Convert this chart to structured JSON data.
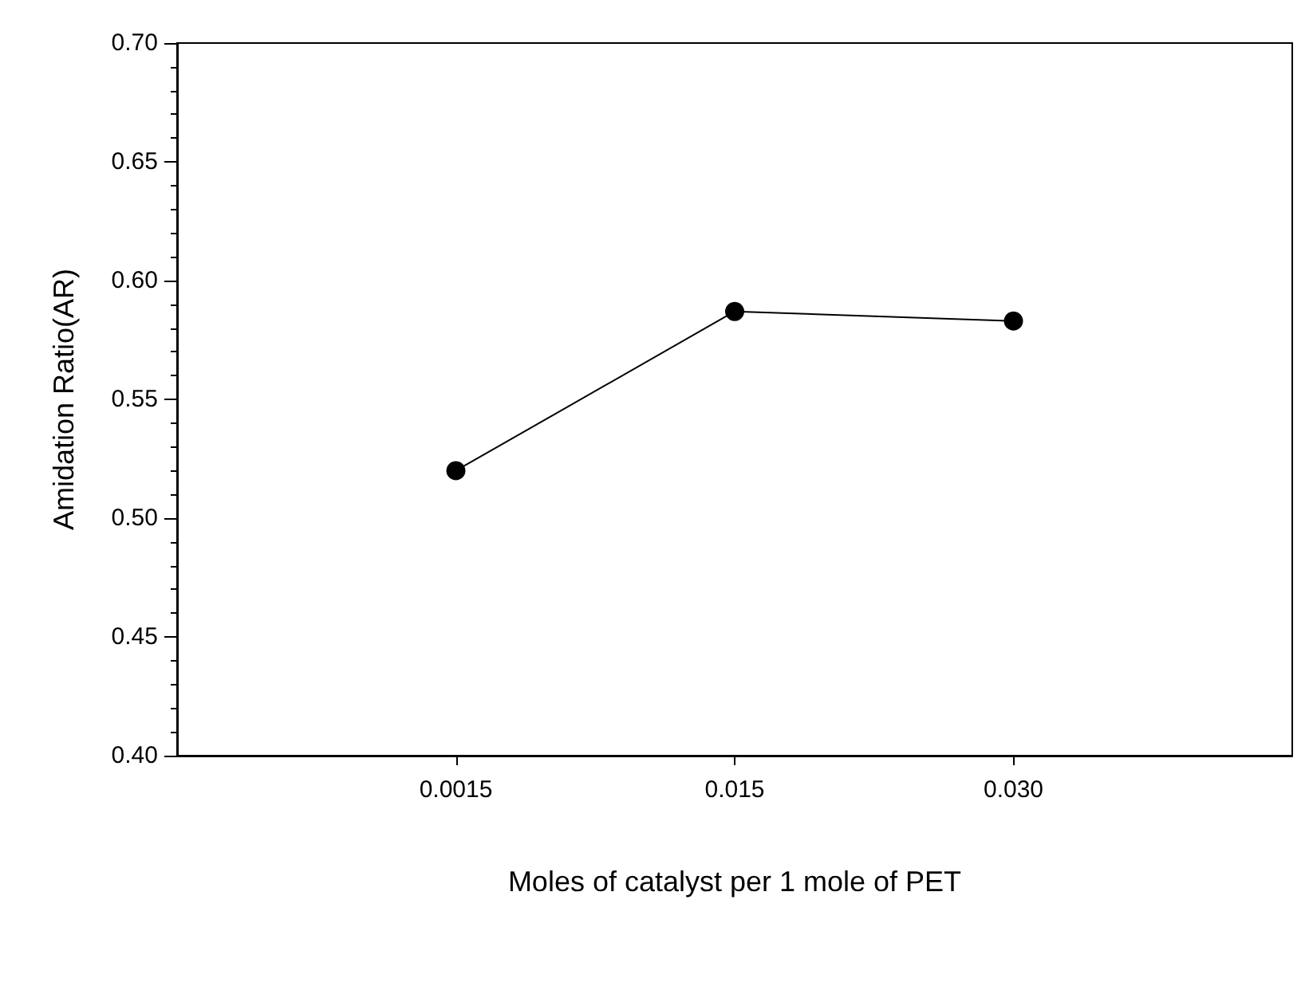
{
  "chart_data": {
    "type": "line",
    "xlabel": "Moles of catalyst per 1 mole of PET",
    "ylabel": "Amidation Ratio(AR)",
    "categories": [
      null,
      "0.0015",
      "0.015",
      "0.030",
      null
    ],
    "series": [
      {
        "color": "#000000",
        "values": [
          null,
          0.52,
          0.587,
          0.583,
          null
        ]
      }
    ],
    "ylim": [
      0.4,
      0.7
    ],
    "yticks": [
      {
        "value": 0.4,
        "label": "0.40"
      },
      0.45,
      {
        "value": 0.5,
        "label": "0.50"
      },
      0.55,
      {
        "value": 0.6,
        "label": "0.60"
      },
      0.65,
      {
        "value": 0.7,
        "label": "0.70"
      }
    ],
    "marker": "circle",
    "line_style": "solid",
    "grid": false
  }
}
